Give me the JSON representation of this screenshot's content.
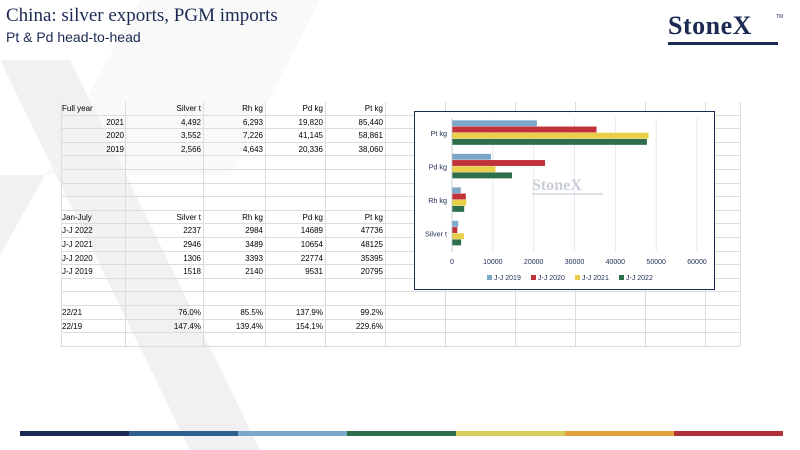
{
  "header": {
    "title": "China: silver exports, PGM imports",
    "subtitle": "Pt & Pd head-to-head"
  },
  "logo": {
    "text": "StoneX",
    "tm": "TM"
  },
  "full_year": {
    "headers": [
      "Full year",
      "Silver t",
      "Rh kg",
      "Pd kg",
      "Pt kg"
    ],
    "rows": [
      [
        "2021",
        "4,492",
        "6,293",
        "19,820",
        "85,440"
      ],
      [
        "2020",
        "3,552",
        "7,226",
        "41,145",
        "58,861"
      ],
      [
        "2019",
        "2,566",
        "4,643",
        "20,336",
        "38,060"
      ]
    ]
  },
  "jan_july": {
    "headers": [
      "Jan-July",
      "Silver t",
      "Rh kg",
      "Pd kg",
      "Pt kg"
    ],
    "rows": [
      [
        "J-J 2022",
        "2237",
        "2984",
        "14689",
        "47736"
      ],
      [
        "J-J 2021",
        "2946",
        "3489",
        "10654",
        "48125"
      ],
      [
        "J-J 2020",
        "1306",
        "3393",
        "22774",
        "35395"
      ],
      [
        "J-J 2019",
        "1518",
        "2140",
        "9531",
        "20795"
      ]
    ]
  },
  "ratios": {
    "rows": [
      [
        "22/21",
        "76.0%",
        "85.5%",
        "137.9%",
        "99.2%"
      ],
      [
        "22/19",
        "147.4%",
        "139.4%",
        "154.1%",
        "229.6%"
      ]
    ]
  },
  "chart_data": {
    "type": "bar",
    "orientation": "horizontal",
    "categories": [
      "Pt kg",
      "Pd kg",
      "Rh kg",
      "Silver t"
    ],
    "series": [
      {
        "name": "J-J 2019",
        "color": "#7ba7c9",
        "values": [
          20795,
          9531,
          2140,
          1518
        ]
      },
      {
        "name": "J-J 2020",
        "color": "#c0313a",
        "values": [
          35395,
          22774,
          3393,
          1306
        ]
      },
      {
        "name": "J-J 2021",
        "color": "#e8cf4a",
        "values": [
          48125,
          10654,
          3489,
          2946
        ]
      },
      {
        "name": "J-J 2022",
        "color": "#2f6e4c",
        "values": [
          47736,
          14689,
          2984,
          2237
        ]
      }
    ],
    "xlim": [
      0,
      60000
    ],
    "ticks": [
      "0",
      "10000",
      "20000",
      "30000",
      "40000",
      "50000",
      "60000"
    ],
    "tick_values": [
      0,
      10000,
      20000,
      30000,
      40000,
      50000,
      60000
    ],
    "legend_position": "bottom",
    "gridlines": true,
    "watermark": "StoneX"
  },
  "footer_colors": [
    "#1b2a52",
    "#2f5f8f",
    "#7ba7c9",
    "#2f6e4c",
    "#d6cf5a",
    "#e0a23a",
    "#b1313a"
  ]
}
